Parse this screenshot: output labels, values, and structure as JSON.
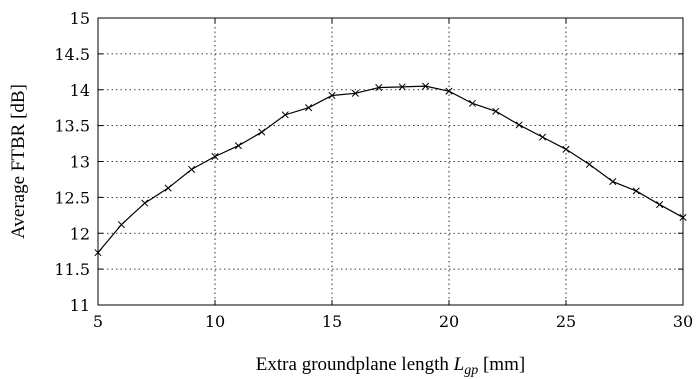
{
  "chart_data": {
    "type": "line",
    "xlabel_main": "Extra groundplane length ",
    "xlabel_var": "L",
    "xlabel_sub": "gp",
    "xlabel_unit": " [mm]",
    "ylabel": "Average FTBR [dB]",
    "xlim": [
      5,
      30
    ],
    "ylim": [
      11,
      15
    ],
    "xticks": [
      5,
      10,
      15,
      20,
      25,
      30
    ],
    "yticks": [
      11,
      11.5,
      12,
      12.5,
      13,
      13.5,
      14,
      14.5,
      15
    ],
    "xtick_labels": [
      "5",
      "10",
      "15",
      "20",
      "25",
      "30"
    ],
    "ytick_labels": [
      "11",
      "11.5",
      "12",
      "12.5",
      "13",
      "13.5",
      "14",
      "14.5",
      "15"
    ],
    "grid": true,
    "marker": "x",
    "series": [
      {
        "x": [
          5,
          6,
          7,
          8,
          9,
          10,
          11,
          12,
          13,
          14,
          15,
          16,
          17,
          18,
          19,
          20,
          21,
          22,
          23,
          24,
          25,
          26,
          27,
          28,
          29,
          30
        ],
        "values": [
          11.73,
          12.12,
          12.42,
          12.63,
          12.89,
          13.07,
          13.22,
          13.41,
          13.65,
          13.75,
          13.92,
          13.95,
          14.03,
          14.04,
          14.05,
          13.98,
          13.81,
          13.7,
          13.51,
          13.34,
          13.17,
          12.96,
          12.72,
          12.59,
          12.4,
          12.22
        ]
      }
    ]
  }
}
